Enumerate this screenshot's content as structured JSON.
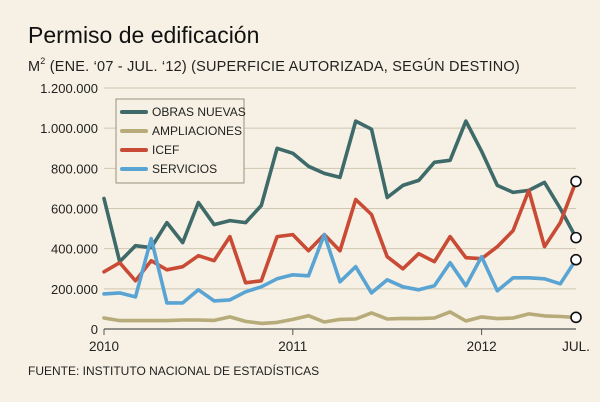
{
  "header": {
    "title": "Permiso de edificación",
    "subtitle_unit": "M",
    "subtitle_exp": "2",
    "subtitle_rest": " (ENE. ‘07 - JUL. ‘12) (SUPERFICIE AUTORIZADA, SEGÚN DESTINO)"
  },
  "footer": {
    "source": "FUENTE: INSTITUTO NACIONAL DE ESTADÍSTICAS"
  },
  "chart_data": {
    "type": "line",
    "title": "Permiso de edificación",
    "ylabel": "M2",
    "ylim": [
      0,
      1200000
    ],
    "yticks": [
      0,
      200000,
      400000,
      600000,
      800000,
      1000000,
      1200000
    ],
    "ytick_labels": [
      "0",
      "200.000",
      "400.000",
      "600.000",
      "800.000",
      "1.000.000",
      "1.200.000"
    ],
    "xlim": [
      0,
      30
    ],
    "xticks": [
      {
        "x": 0,
        "label": "2010"
      },
      {
        "x": 12,
        "label": "2011"
      },
      {
        "x": 24,
        "label": "2012"
      },
      {
        "x": 30,
        "label": "JUL."
      }
    ],
    "grid": true,
    "legend_position": "top-left",
    "series": [
      {
        "name": "OBRAS NUEVAS",
        "color": "#3e6a6a",
        "values": [
          650000,
          335000,
          415000,
          405000,
          530000,
          430000,
          630000,
          520000,
          540000,
          530000,
          615000,
          900000,
          875000,
          810000,
          775000,
          755000,
          1035000,
          995000,
          655000,
          715000,
          740000,
          830000,
          840000,
          1035000,
          885000,
          715000,
          680000,
          690000,
          730000,
          600000,
          455000
        ]
      },
      {
        "name": "AMPLIACIONES",
        "color": "#b8ab7a",
        "values": [
          55000,
          42000,
          42000,
          42000,
          42000,
          45000,
          45000,
          43000,
          60000,
          38000,
          28000,
          33000,
          48000,
          66000,
          35000,
          48000,
          50000,
          80000,
          50000,
          53000,
          52000,
          55000,
          85000,
          40000,
          60000,
          52000,
          55000,
          75000,
          65000,
          62000,
          58000
        ]
      },
      {
        "name": "ICEF",
        "color": "#c94a35",
        "values": [
          285000,
          330000,
          240000,
          340000,
          295000,
          310000,
          365000,
          340000,
          460000,
          230000,
          240000,
          460000,
          470000,
          390000,
          470000,
          390000,
          645000,
          570000,
          360000,
          300000,
          375000,
          335000,
          460000,
          355000,
          350000,
          410000,
          490000,
          690000,
          410000,
          530000,
          735000
        ]
      },
      {
        "name": "SERVICIOS",
        "color": "#5aa4d4",
        "values": [
          175000,
          180000,
          160000,
          450000,
          130000,
          130000,
          195000,
          140000,
          145000,
          185000,
          210000,
          250000,
          270000,
          265000,
          470000,
          235000,
          310000,
          180000,
          245000,
          210000,
          195000,
          215000,
          330000,
          215000,
          360000,
          190000,
          255000,
          255000,
          250000,
          225000,
          345000
        ]
      }
    ]
  }
}
